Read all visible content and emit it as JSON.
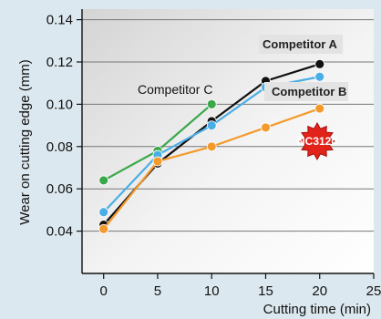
{
  "chart_data": {
    "type": "line",
    "xlabel": "Cutting time (min)",
    "ylabel": "Wear on cutting edge (mm)",
    "xlim": [
      -2,
      25
    ],
    "ylim": [
      0.02,
      0.145
    ],
    "xticks": [
      0,
      5,
      10,
      15,
      20,
      25
    ],
    "yticks": [
      0.04,
      0.06,
      0.08,
      0.1,
      0.12,
      0.14
    ],
    "grid": true,
    "series": [
      {
        "name": "Competitor C",
        "color": "#3aa84a",
        "x": [
          0,
          5,
          10
        ],
        "y": [
          0.064,
          0.078,
          0.1
        ]
      },
      {
        "name": "Competitor A",
        "color": "#111111",
        "x": [
          0,
          5,
          10,
          15,
          20
        ],
        "y": [
          0.043,
          0.072,
          0.092,
          0.111,
          0.119
        ]
      },
      {
        "name": "Competitor B",
        "color": "#4aaee6",
        "x": [
          0,
          5,
          10,
          15,
          20
        ],
        "y": [
          0.049,
          0.076,
          0.09,
          0.108,
          0.113
        ]
      },
      {
        "name": "NC3120",
        "color": "#f39a2b",
        "x": [
          0,
          5,
          10,
          15,
          20
        ],
        "y": [
          0.041,
          0.073,
          0.08,
          0.089,
          0.098
        ]
      }
    ]
  }
}
